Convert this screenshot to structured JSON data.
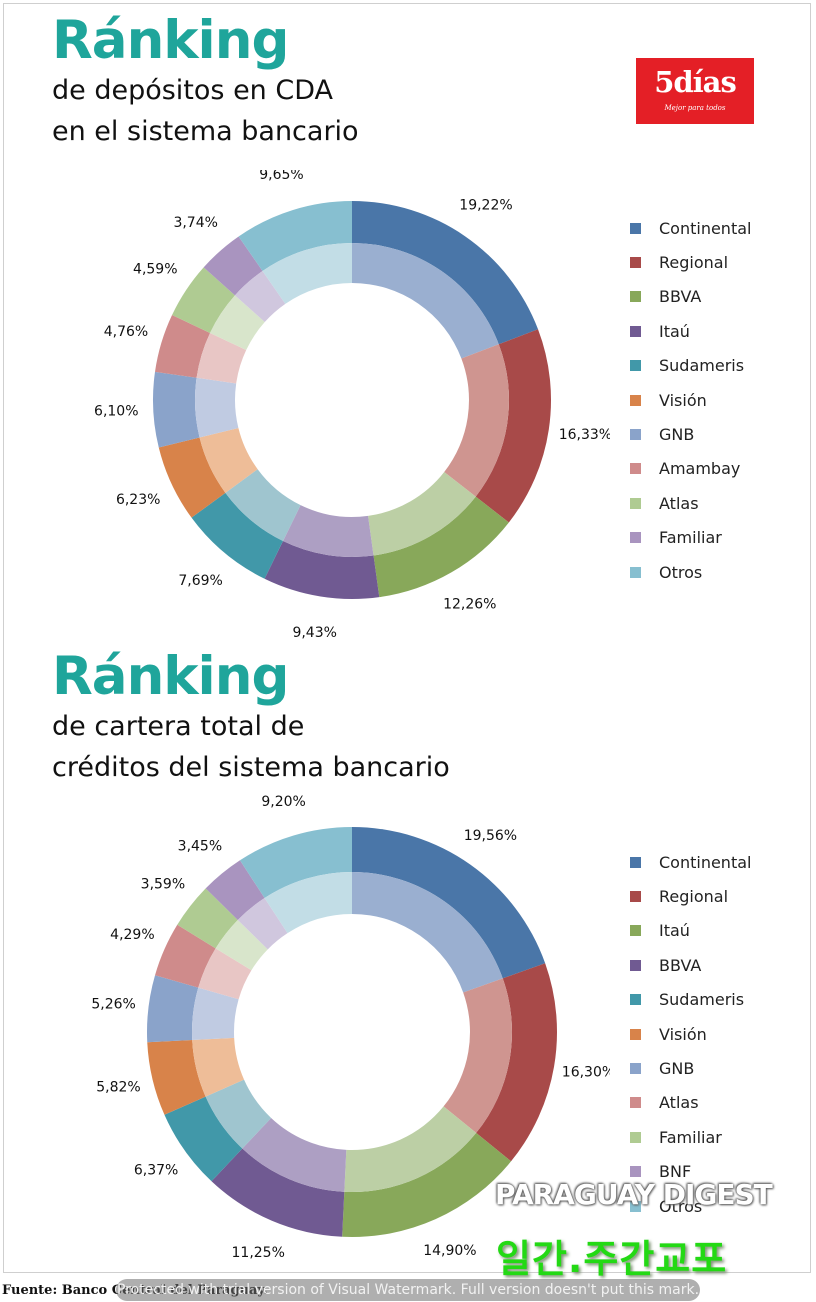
{
  "colors": {
    "title": "#1fa59b",
    "logo_bg": "#e41f26",
    "watermark_green": "#23d914",
    "palette": [
      "#4a76a8",
      "#a84a49",
      "#88a85a",
      "#705a92",
      "#4198a9",
      "#d8834a",
      "#8aa3ca",
      "#cf8b8b",
      "#afcb92",
      "#a994bf",
      "#87bfd0"
    ],
    "palette_inner": [
      "#9aafd0",
      "#cf9590",
      "#bccfa5",
      "#ad9fc3",
      "#9fc5cf",
      "#eebd98",
      "#c0cbe2",
      "#e8c6c5",
      "#d8e5cb",
      "#d0c7de",
      "#c2dde6"
    ]
  },
  "logo": {
    "name": "5días",
    "tagline": "Mejor para todos"
  },
  "chart_data": [
    {
      "type": "donut",
      "title": "Ránking",
      "subtitle_lines": [
        "de depósitos en CDA",
        "en el sistema bancario"
      ],
      "categories": [
        "Continental",
        "Regional",
        "BBVA",
        "Itaú",
        "Sudameris",
        "Visión",
        "GNB",
        "Amambay",
        "Atlas",
        "Familiar",
        "Otros"
      ],
      "values": [
        19.22,
        16.33,
        12.26,
        9.43,
        7.69,
        6.23,
        6.1,
        4.76,
        4.59,
        3.74,
        9.65
      ],
      "value_labels": [
        "19,22%",
        "16,33%",
        "12,26%",
        "9,43%",
        "7,69%",
        "6,23%",
        "6,10%",
        "4,76%",
        "4,59%",
        "3,74%",
        "9,65%"
      ],
      "legend_position": "right"
    },
    {
      "type": "donut",
      "title": "Ránking",
      "subtitle_lines": [
        "de cartera total de",
        "créditos del sistema bancario"
      ],
      "categories": [
        "Continental",
        "Regional",
        "Itaú",
        "BBVA",
        "Sudameris",
        "Visión",
        "GNB",
        "Atlas",
        "Familiar",
        "BNF",
        "Otros"
      ],
      "values": [
        19.56,
        16.3,
        14.9,
        11.25,
        6.37,
        5.82,
        5.26,
        4.29,
        3.59,
        3.45,
        9.2
      ],
      "value_labels": [
        "19,56%",
        "16,30%",
        "14,90%",
        "11,25%",
        "6,37%",
        "5,82%",
        "5,26%",
        "4,29%",
        "3,59%",
        "3,45%",
        "9,20%"
      ],
      "legend_position": "right"
    }
  ],
  "watermarks": {
    "english": "PARAGUAY DIGEST",
    "korean": "일간.주간교포",
    "trial_notice": "Protected with trial version of Visual Watermark. Full version doesn't put this mark."
  },
  "source": "Fuente: Banco Central del Paraguay."
}
